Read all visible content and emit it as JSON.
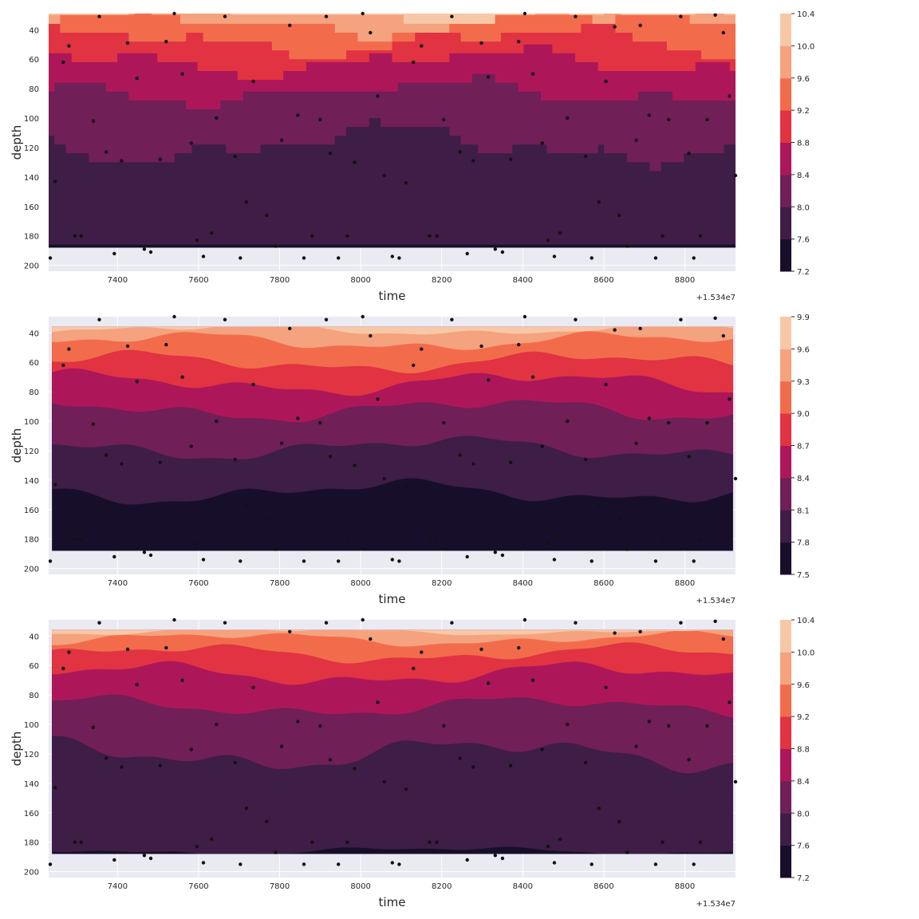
{
  "chart_data": [
    {
      "type": "heatmap",
      "subtype": "filled-contour",
      "xlabel": "time",
      "ylabel": "depth",
      "x_offset_text": "+1.534e7",
      "x_tick_values": [
        7400,
        7600,
        7800,
        8000,
        8200,
        8400,
        8600,
        8800
      ],
      "x_tick_labels": [
        "7400",
        "7600",
        "7800",
        "8000",
        "8200",
        "8400",
        "8600",
        "8800"
      ],
      "xlim": [
        7230,
        8925
      ],
      "y_tick_values": [
        40,
        60,
        80,
        100,
        120,
        140,
        160,
        180,
        200
      ],
      "y_tick_labels": [
        "40",
        "60",
        "80",
        "100",
        "120",
        "140",
        "160",
        "180",
        "200"
      ],
      "ylim_inverted": [
        29,
        204
      ],
      "colorbar_levels": [
        7.2,
        7.6,
        8.0,
        8.4,
        8.8,
        9.2,
        9.6,
        10.0,
        10.4
      ],
      "colorbar_labels": [
        "7.2",
        "7.6",
        "8.0",
        "8.4",
        "8.8",
        "9.2",
        "9.6",
        "10.0",
        "10.4"
      ],
      "style": "stepped"
    },
    {
      "type": "heatmap",
      "subtype": "filled-contour",
      "xlabel": "time",
      "ylabel": "depth",
      "x_offset_text": "+1.534e7",
      "x_tick_values": [
        7400,
        7600,
        7800,
        8000,
        8200,
        8400,
        8600,
        8800
      ],
      "x_tick_labels": [
        "7400",
        "7600",
        "7800",
        "8000",
        "8200",
        "8400",
        "8600",
        "8800"
      ],
      "xlim": [
        7230,
        8925
      ],
      "y_tick_values": [
        40,
        60,
        80,
        100,
        120,
        140,
        160,
        180,
        200
      ],
      "y_tick_labels": [
        "40",
        "60",
        "80",
        "100",
        "120",
        "140",
        "160",
        "180",
        "200"
      ],
      "ylim_inverted": [
        29,
        204
      ],
      "colorbar_levels": [
        7.5,
        7.8,
        8.1,
        8.4,
        8.7,
        9.0,
        9.3,
        9.6,
        9.9
      ],
      "colorbar_labels": [
        "7.5",
        "7.8",
        "8.1",
        "8.4",
        "8.7",
        "9.0",
        "9.3",
        "9.6",
        "9.9"
      ],
      "style": "smooth"
    },
    {
      "type": "heatmap",
      "subtype": "filled-contour",
      "xlabel": "time",
      "ylabel": "depth",
      "x_offset_text": "+1.534e7",
      "x_tick_values": [
        7400,
        7600,
        7800,
        8000,
        8200,
        8400,
        8600,
        8800
      ],
      "x_tick_labels": [
        "7400",
        "7600",
        "7800",
        "8000",
        "8200",
        "8400",
        "8600",
        "8800"
      ],
      "xlim": [
        7230,
        8925
      ],
      "y_tick_values": [
        40,
        60,
        80,
        100,
        120,
        140,
        160,
        180,
        200
      ],
      "y_tick_labels": [
        "40",
        "60",
        "80",
        "100",
        "120",
        "140",
        "160",
        "180",
        "200"
      ],
      "ylim_inverted": [
        29,
        204
      ],
      "colorbar_levels": [
        7.2,
        7.6,
        8.0,
        8.4,
        8.8,
        9.2,
        9.6,
        10.0,
        10.4
      ],
      "colorbar_labels": [
        "7.2",
        "7.6",
        "8.0",
        "8.4",
        "8.8",
        "9.2",
        "9.6",
        "10.0",
        "10.4"
      ],
      "style": "smooth"
    }
  ],
  "colors": {
    "bands": [
      "#170f2a",
      "#3e1d46",
      "#701f57",
      "#ad1759",
      "#e13342",
      "#f26c4c",
      "#f5a27e",
      "#f7c8a7"
    ],
    "axes_face": "#eaeaf2",
    "grid": "#ffffff",
    "points": "#111111"
  },
  "sample_points": [
    {
      "t": 7234,
      "d": 195
    },
    {
      "t": 7246,
      "d": 143
    },
    {
      "t": 7266,
      "d": 62
    },
    {
      "t": 7280,
      "d": 51
    },
    {
      "t": 7295,
      "d": 180
    },
    {
      "t": 7310,
      "d": 180
    },
    {
      "t": 7340,
      "d": 102
    },
    {
      "t": 7355,
      "d": 31
    },
    {
      "t": 7372,
      "d": 123
    },
    {
      "t": 7392,
      "d": 192
    },
    {
      "t": 7410,
      "d": 129
    },
    {
      "t": 7425,
      "d": 49
    },
    {
      "t": 7448,
      "d": 73
    },
    {
      "t": 7466,
      "d": 189
    },
    {
      "t": 7482,
      "d": 191
    },
    {
      "t": 7505,
      "d": 128
    },
    {
      "t": 7520,
      "d": 48
    },
    {
      "t": 7540,
      "d": 29
    },
    {
      "t": 7560,
      "d": 70
    },
    {
      "t": 7582,
      "d": 117
    },
    {
      "t": 7596,
      "d": 183
    },
    {
      "t": 7612,
      "d": 194
    },
    {
      "t": 7632,
      "d": 178
    },
    {
      "t": 7644,
      "d": 100
    },
    {
      "t": 7665,
      "d": 31
    },
    {
      "t": 7690,
      "d": 126
    },
    {
      "t": 7703,
      "d": 195
    },
    {
      "t": 7718,
      "d": 157
    },
    {
      "t": 7735,
      "d": 75
    },
    {
      "t": 7768,
      "d": 166
    },
    {
      "t": 7790,
      "d": 187
    },
    {
      "t": 7805,
      "d": 115
    },
    {
      "t": 7825,
      "d": 37
    },
    {
      "t": 7845,
      "d": 98
    },
    {
      "t": 7860,
      "d": 195
    },
    {
      "t": 7880,
      "d": 180
    },
    {
      "t": 7900,
      "d": 101
    },
    {
      "t": 7915,
      "d": 31
    },
    {
      "t": 7925,
      "d": 124
    },
    {
      "t": 7945,
      "d": 195
    },
    {
      "t": 7967,
      "d": 180
    },
    {
      "t": 7985,
      "d": 130
    },
    {
      "t": 8005,
      "d": 29
    },
    {
      "t": 8024,
      "d": 42
    },
    {
      "t": 8042,
      "d": 85
    },
    {
      "t": 8058,
      "d": 139
    },
    {
      "t": 8078,
      "d": 194
    },
    {
      "t": 8095,
      "d": 195
    },
    {
      "t": 8112,
      "d": 144
    },
    {
      "t": 8130,
      "d": 62
    },
    {
      "t": 8150,
      "d": 51
    },
    {
      "t": 8170,
      "d": 180
    },
    {
      "t": 8188,
      "d": 180
    },
    {
      "t": 8205,
      "d": 101
    },
    {
      "t": 8225,
      "d": 31
    },
    {
      "t": 8245,
      "d": 123
    },
    {
      "t": 8263,
      "d": 192
    },
    {
      "t": 8278,
      "d": 129
    },
    {
      "t": 8298,
      "d": 49
    },
    {
      "t": 8315,
      "d": 72
    },
    {
      "t": 8332,
      "d": 189
    },
    {
      "t": 8350,
      "d": 191
    },
    {
      "t": 8370,
      "d": 128
    },
    {
      "t": 8390,
      "d": 48
    },
    {
      "t": 8405,
      "d": 29
    },
    {
      "t": 8425,
      "d": 70
    },
    {
      "t": 8448,
      "d": 117
    },
    {
      "t": 8462,
      "d": 183
    },
    {
      "t": 8478,
      "d": 194
    },
    {
      "t": 8492,
      "d": 178
    },
    {
      "t": 8510,
      "d": 100
    },
    {
      "t": 8530,
      "d": 31
    },
    {
      "t": 8555,
      "d": 126
    },
    {
      "t": 8570,
      "d": 195
    },
    {
      "t": 8588,
      "d": 157
    },
    {
      "t": 8605,
      "d": 75
    },
    {
      "t": 8627,
      "d": 38
    },
    {
      "t": 8638,
      "d": 166
    },
    {
      "t": 8658,
      "d": 187
    },
    {
      "t": 8680,
      "d": 115
    },
    {
      "t": 8690,
      "d": 37
    },
    {
      "t": 8712,
      "d": 98
    },
    {
      "t": 8728,
      "d": 195
    },
    {
      "t": 8745,
      "d": 180
    },
    {
      "t": 8760,
      "d": 101
    },
    {
      "t": 8790,
      "d": 31
    },
    {
      "t": 8810,
      "d": 124
    },
    {
      "t": 8822,
      "d": 195
    },
    {
      "t": 8838,
      "d": 180
    },
    {
      "t": 8855,
      "d": 101
    },
    {
      "t": 8875,
      "d": 30
    },
    {
      "t": 8895,
      "d": 42
    },
    {
      "t": 8910,
      "d": 85
    },
    {
      "t": 8925,
      "d": 139
    }
  ]
}
